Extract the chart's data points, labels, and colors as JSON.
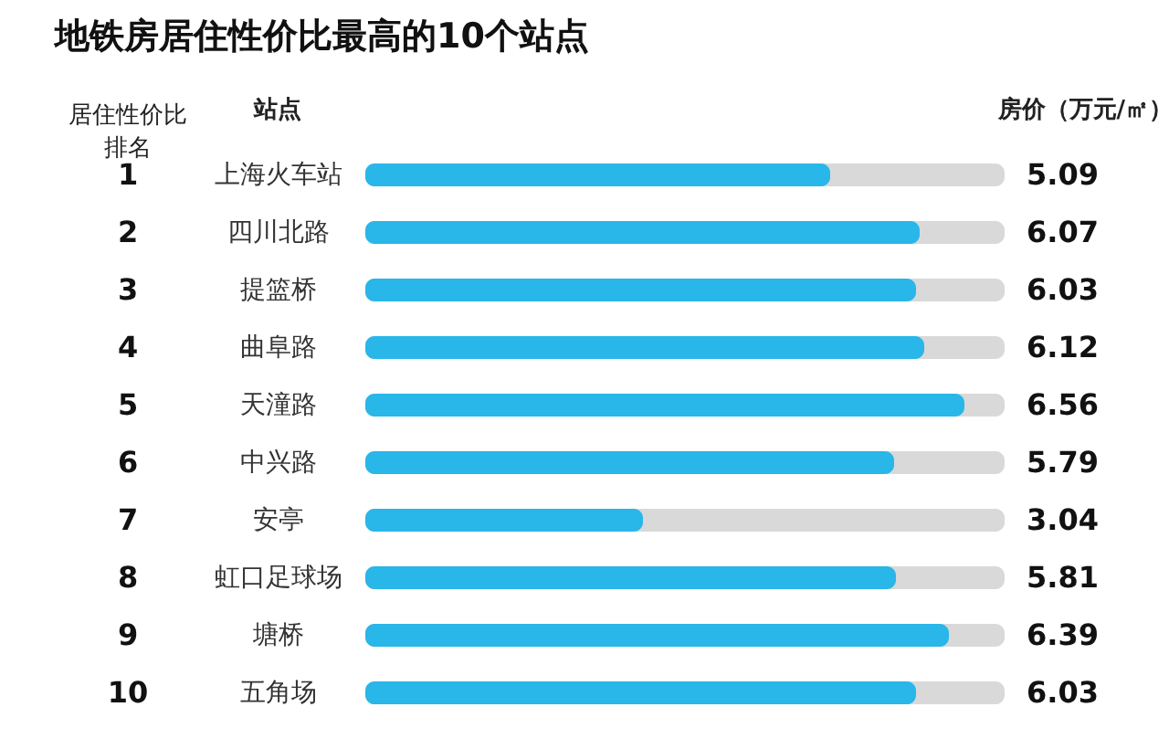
{
  "chart_data": {
    "type": "bar",
    "orientation": "horizontal",
    "title": "地铁房居住性价比最高的10个站点",
    "categories": [
      "上海火车站",
      "四川北路",
      "提篮桥",
      "曲阜路",
      "天潼路",
      "中兴路",
      "安亭",
      "虹口足球场",
      "塘桥",
      "五角场"
    ],
    "values": [
      5.09,
      6.07,
      6.03,
      6.12,
      6.56,
      5.79,
      3.04,
      5.81,
      6.39,
      6.03
    ],
    "color": "#29b6e8",
    "xlim": [
      0,
      7
    ],
    "tick_labels": "y",
    "data_labels": true,
    "xlabel": "房价（万元/㎡）",
    "ylabel": "站点",
    "annotations": [
      "居住性价比排名",
      "1",
      "2",
      "3",
      "4",
      "5",
      "6",
      "7",
      "8",
      "9",
      "10"
    ]
  }
}
